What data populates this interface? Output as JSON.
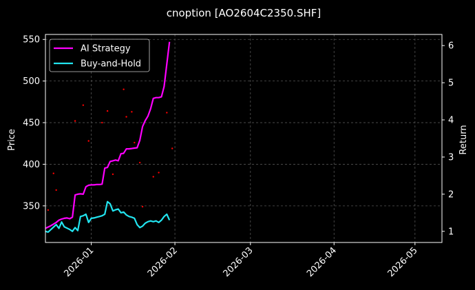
{
  "chart_data": {
    "type": "line",
    "title": "cnoption [AO2604C2350.SHF]",
    "x_tick_labels": [
      "2026-01",
      "2026-02",
      "2026-03",
      "2026-04",
      "2026-05"
    ],
    "x_ticks": [
      "2026-01-01",
      "2026-02-01",
      "2026-03-01",
      "2026-04-01",
      "2026-05-01"
    ],
    "xlim": [
      "2025-12-15",
      "2026-05-11"
    ],
    "y_left": {
      "label": "Price",
      "ylim": [
        306,
        556
      ],
      "ticks": [
        350,
        400,
        450,
        500,
        550
      ]
    },
    "y_right": {
      "label": "Return",
      "ylim": [
        0.7,
        6.3
      ],
      "ticks": [
        1,
        2,
        3,
        4,
        5,
        6
      ]
    },
    "grid": true,
    "legend": {
      "placement": "top-left",
      "entries": [
        "AI Strategy",
        "Buy-and-Hold"
      ]
    },
    "series": [
      {
        "name": "AI Strategy",
        "axis": "right",
        "color": "#ff00ff",
        "x": [
          "2025-12-15",
          "2025-12-17",
          "2025-12-19",
          "2025-12-20",
          "2025-12-21",
          "2025-12-22",
          "2025-12-23",
          "2025-12-24",
          "2025-12-25",
          "2025-12-26",
          "2025-12-27",
          "2025-12-28",
          "2025-12-29",
          "2025-12-30",
          "2025-12-31",
          "2026-01-01",
          "2026-01-02",
          "2026-01-03",
          "2026-01-04",
          "2026-01-05",
          "2026-01-06",
          "2026-01-07",
          "2026-01-08",
          "2026-01-09",
          "2026-01-10",
          "2026-01-11",
          "2026-01-12",
          "2026-01-13",
          "2026-01-14",
          "2026-01-15",
          "2026-01-16",
          "2026-01-17",
          "2026-01-18",
          "2026-01-19",
          "2026-01-20",
          "2026-01-21",
          "2026-01-22",
          "2026-01-23",
          "2026-01-24",
          "2026-01-25",
          "2026-01-26",
          "2026-01-27",
          "2026-01-28",
          "2026-01-29",
          "2026-01-30"
        ],
        "values": [
          1.08,
          1.15,
          1.24,
          1.3,
          1.33,
          1.35,
          1.36,
          1.34,
          1.38,
          1.98,
          2.0,
          2.01,
          2.0,
          2.2,
          2.24,
          2.25,
          2.25,
          2.26,
          2.26,
          2.27,
          2.7,
          2.72,
          2.88,
          2.9,
          2.92,
          2.9,
          3.09,
          3.1,
          3.22,
          3.22,
          3.23,
          3.24,
          3.25,
          3.45,
          3.82,
          3.98,
          4.1,
          4.3,
          4.58,
          4.6,
          4.6,
          4.62,
          4.9,
          5.5,
          6.1
        ]
      },
      {
        "name": "Buy-and-Hold",
        "axis": "right",
        "color": "#22e5f0",
        "x": [
          "2025-12-15",
          "2025-12-16",
          "2025-12-19",
          "2025-12-20",
          "2025-12-21",
          "2025-12-22",
          "2025-12-24",
          "2025-12-25",
          "2025-12-26",
          "2025-12-27",
          "2025-12-28",
          "2025-12-29",
          "2025-12-30",
          "2025-12-31",
          "2026-01-01",
          "2026-01-02",
          "2026-01-03",
          "2026-01-04",
          "2026-01-05",
          "2026-01-06",
          "2026-01-07",
          "2026-01-08",
          "2026-01-09",
          "2026-01-10",
          "2026-01-11",
          "2026-01-12",
          "2026-01-13",
          "2026-01-14",
          "2026-01-15",
          "2026-01-16",
          "2026-01-17",
          "2026-01-18",
          "2026-01-19",
          "2026-01-20",
          "2026-01-21",
          "2026-01-22",
          "2026-01-23",
          "2026-01-24",
          "2026-01-25",
          "2026-01-26",
          "2026-01-27",
          "2026-01-28",
          "2026-01-29",
          "2026-01-30"
        ],
        "values": [
          1.0,
          0.98,
          1.18,
          1.08,
          1.25,
          1.12,
          1.05,
          1.0,
          1.1,
          1.02,
          1.4,
          1.42,
          1.46,
          1.24,
          1.35,
          1.36,
          1.38,
          1.4,
          1.42,
          1.46,
          1.8,
          1.74,
          1.55,
          1.58,
          1.6,
          1.5,
          1.52,
          1.44,
          1.4,
          1.38,
          1.35,
          1.18,
          1.1,
          1.14,
          1.22,
          1.26,
          1.28,
          1.26,
          1.28,
          1.24,
          1.3,
          1.4,
          1.46,
          1.3
        ]
      },
      {
        "name": "",
        "type": "scatter",
        "axis": "left",
        "color": "#ff0000",
        "x": [
          "2025-12-16",
          "2025-12-18",
          "2025-12-19",
          "2025-12-21",
          "2025-12-26",
          "2025-12-29",
          "2025-12-31",
          "2026-01-05",
          "2026-01-07",
          "2026-01-09",
          "2026-01-13",
          "2026-01-14",
          "2026-01-16",
          "2026-01-17",
          "2026-01-19",
          "2026-01-20",
          "2026-01-24",
          "2026-01-26",
          "2026-01-29",
          "2026-01-31"
        ],
        "values": [
          345,
          389,
          369,
          330,
          452,
          471,
          428,
          450,
          464,
          388,
          490,
          457,
          463,
          426,
          402,
          349,
          385,
          390,
          462,
          419
        ]
      }
    ]
  }
}
